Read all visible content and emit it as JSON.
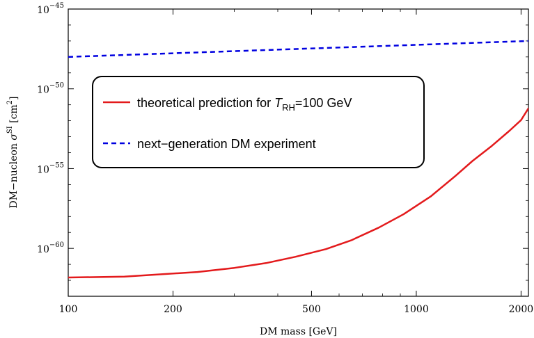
{
  "chart_data": {
    "type": "line",
    "xlabel": "DM mass [GeV]",
    "ylabel_parts": {
      "pre": "DM−nucleon ",
      "sigma": "σ",
      "sup": "SI",
      "post": " [cm",
      "unit_sup": "2",
      "close": "]"
    },
    "x_scale": "log",
    "y_scale": "log",
    "xlim": [
      100,
      2100
    ],
    "ylim": [
      1e-63,
      1e-45
    ],
    "x_ticks": [
      {
        "value": 100,
        "label": "100"
      },
      {
        "value": 200,
        "label": "200"
      },
      {
        "value": 500,
        "label": "500"
      },
      {
        "value": 1000,
        "label": "1000"
      },
      {
        "value": 2000,
        "label": "2000"
      }
    ],
    "y_ticks": [
      {
        "value": 1e-60,
        "base": "10",
        "exp": "−60"
      },
      {
        "value": 1e-55,
        "base": "10",
        "exp": "−55"
      },
      {
        "value": 1e-50,
        "base": "10",
        "exp": "−50"
      },
      {
        "value": 1e-45,
        "base": "10",
        "exp": "−45"
      }
    ],
    "series": [
      {
        "name_parts": {
          "pre": "theoretical prediction for ",
          "italic": "T",
          "sub": "RH",
          "post": "=100 GeV"
        },
        "color": "#e31a1c",
        "style": "solid",
        "points": [
          [
            100,
            1.5e-62
          ],
          [
            145,
            1.7e-62
          ],
          [
            180,
            2.3e-62
          ],
          [
            235,
            3.3e-62
          ],
          [
            300,
            6e-62
          ],
          [
            370,
            1.2e-61
          ],
          [
            450,
            3e-61
          ],
          [
            550,
            9e-61
          ],
          [
            650,
            3.2e-60
          ],
          [
            780,
            2e-59
          ],
          [
            920,
            1.4e-58
          ],
          [
            1100,
            1.8e-57
          ],
          [
            1300,
            3.7e-56
          ],
          [
            1450,
            3e-55
          ],
          [
            1650,
            2.7e-54
          ],
          [
            1850,
            2.3e-53
          ],
          [
            2000,
            1.1e-52
          ],
          [
            2100,
            6e-52
          ]
        ]
      },
      {
        "name": "next−generation DM experiment",
        "color": "#0000e0",
        "style": "dashed",
        "points": [
          [
            100,
            1e-48
          ],
          [
            2100,
            1e-47
          ]
        ]
      }
    ],
    "legend": {
      "placement": "upper-center"
    }
  }
}
